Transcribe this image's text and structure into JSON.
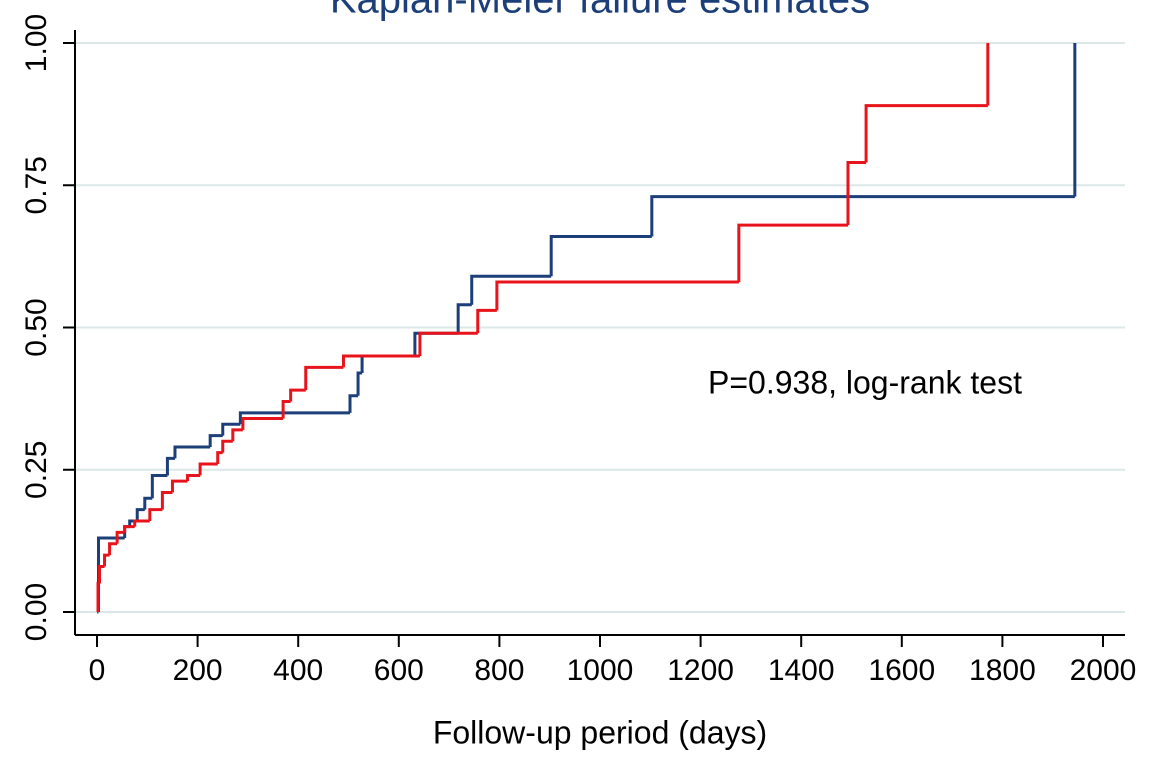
{
  "chart_data": {
    "type": "step",
    "title": "Kaplan-Meier failure estimates",
    "xlabel": "Follow-up period (days)",
    "annotation": "P=0.938, log-rank test",
    "xlim": [
      0,
      2000
    ],
    "xticks": [
      0,
      200,
      400,
      600,
      800,
      1000,
      1200,
      1400,
      1600,
      1800,
      2000
    ],
    "ylim": [
      0,
      1
    ],
    "yticks": [
      {
        "value": 0,
        "label": "0.00"
      },
      {
        "value": 0.25,
        "label": "0.25"
      },
      {
        "value": 0.5,
        "label": "0.50"
      },
      {
        "value": 0.75,
        "label": "0.75"
      },
      {
        "value": 1,
        "label": "1.00"
      }
    ],
    "grid": true,
    "series": [
      {
        "color": "#1c3f7a",
        "x": [
          0,
          3,
          55,
          65,
          80,
          95,
          110,
          140,
          155,
          225,
          250,
          285,
          503,
          519,
          527,
          632,
          718,
          745,
          903,
          1103,
          1944
        ],
        "values": [
          0,
          0.13,
          0.15,
          0.16,
          0.18,
          0.2,
          0.24,
          0.27,
          0.29,
          0.31,
          0.33,
          0.35,
          0.38,
          0.42,
          0.45,
          0.49,
          0.54,
          0.59,
          0.66,
          0.73,
          1.0
        ]
      },
      {
        "color": "#e8141c",
        "x": [
          0,
          2,
          5,
          15,
          25,
          40,
          55,
          75,
          105,
          130,
          150,
          180,
          205,
          240,
          250,
          270,
          290,
          370,
          385,
          415,
          490,
          642,
          757,
          795,
          1276,
          1493,
          1529,
          1771
        ],
        "values": [
          0,
          0.05,
          0.08,
          0.1,
          0.12,
          0.14,
          0.15,
          0.16,
          0.18,
          0.21,
          0.23,
          0.24,
          0.26,
          0.28,
          0.3,
          0.32,
          0.34,
          0.37,
          0.39,
          0.43,
          0.45,
          0.49,
          0.53,
          0.58,
          0.68,
          0.79,
          0.89,
          1.0
        ]
      }
    ]
  }
}
